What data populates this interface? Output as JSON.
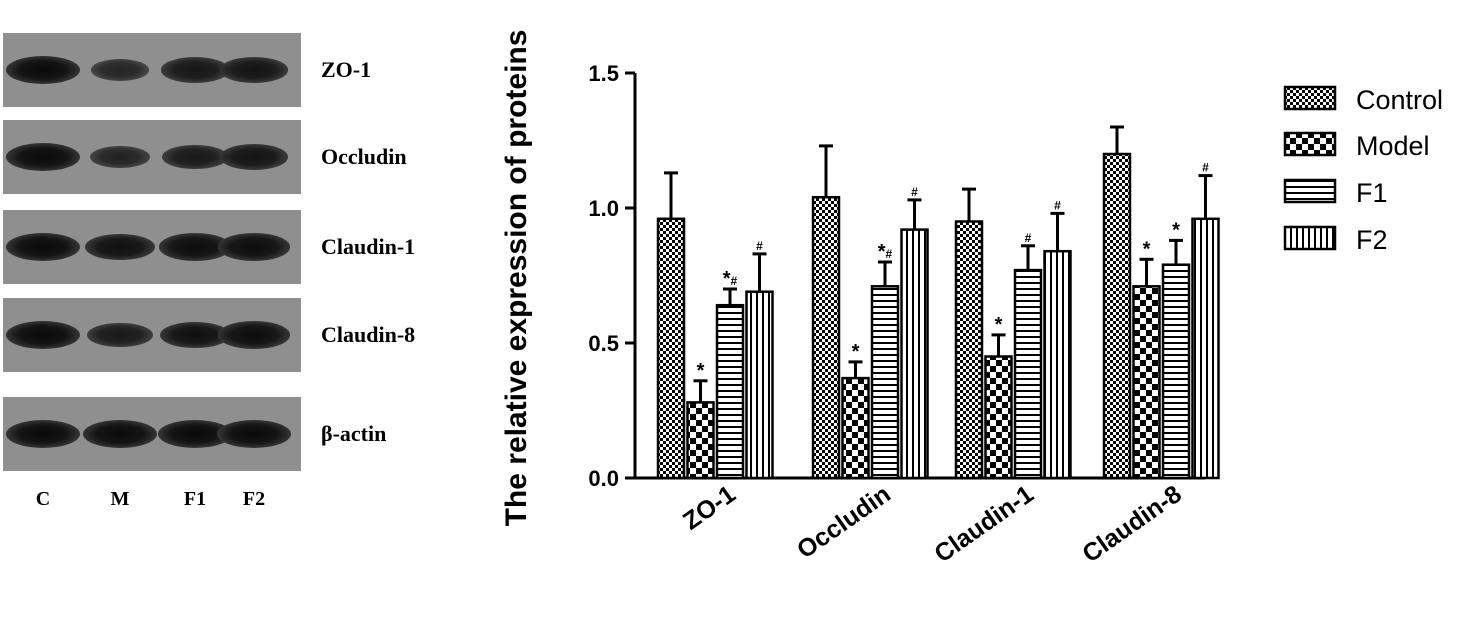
{
  "blot": {
    "proteins": [
      "ZO-1",
      "Occludin",
      "Claudin-1",
      "Claudin-8",
      "β-actin"
    ],
    "lanes": [
      "C",
      "M",
      "F1",
      "F2"
    ],
    "band_intensity": [
      [
        1.0,
        0.55,
        0.8,
        0.85
      ],
      [
        1.0,
        0.6,
        0.75,
        0.85
      ],
      [
        1.0,
        0.9,
        0.95,
        0.95
      ],
      [
        1.0,
        0.75,
        0.9,
        0.95
      ],
      [
        1.0,
        1.0,
        1.0,
        1.0
      ]
    ]
  },
  "chart_data": {
    "type": "bar",
    "categories": [
      "ZO-1",
      "Occludin",
      "Claudin-1",
      "Claudin-8"
    ],
    "ylabel": "The relative expression of proteins",
    "xlabel": "",
    "ylim": [
      0,
      1.5
    ],
    "yticks": [
      "0.0",
      "0.5",
      "1.0",
      "1.5"
    ],
    "legend_position": "right",
    "series": [
      {
        "name": "Control",
        "pattern": "checker",
        "values": [
          0.96,
          1.04,
          0.95,
          1.2
        ],
        "errors": [
          0.17,
          0.19,
          0.12,
          0.1
        ],
        "annotations": [
          "",
          "",
          "",
          ""
        ]
      },
      {
        "name": "Model",
        "pattern": "bigchecker",
        "values": [
          0.28,
          0.37,
          0.45,
          0.71
        ],
        "errors": [
          0.08,
          0.06,
          0.08,
          0.1
        ],
        "annotations": [
          "*",
          "*",
          "*",
          "*"
        ]
      },
      {
        "name": "F1",
        "pattern": "hlines",
        "values": [
          0.64,
          0.71,
          0.77,
          0.79
        ],
        "errors": [
          0.06,
          0.09,
          0.09,
          0.09
        ],
        "annotations": [
          "*#",
          "*#",
          "#",
          "*"
        ]
      },
      {
        "name": "F2",
        "pattern": "vlines",
        "values": [
          0.69,
          0.92,
          0.84,
          0.96
        ],
        "errors": [
          0.14,
          0.11,
          0.14,
          0.16
        ],
        "annotations": [
          "#",
          "#",
          "#",
          "#"
        ]
      }
    ]
  }
}
